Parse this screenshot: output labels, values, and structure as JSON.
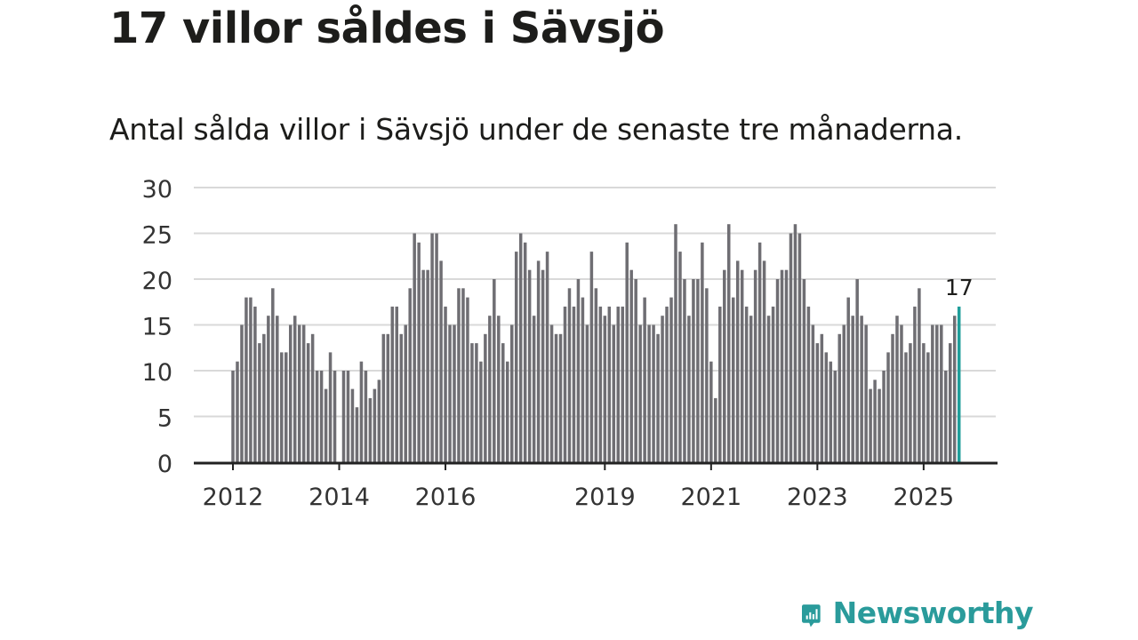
{
  "title": "17 villor såldes i Sävsjö",
  "subtitle": "Antal sålda villor i Sävsjö under de senaste tre månaderna.",
  "brand": {
    "name": "Newsworthy",
    "color": "#2a9b9b"
  },
  "chart_data": {
    "type": "bar",
    "x_start": "2012-01",
    "x_label_years": [
      "2012",
      "2014",
      "2016",
      "2019",
      "2021",
      "2023",
      "2025"
    ],
    "values": [
      10,
      11,
      15,
      18,
      18,
      17,
      13,
      14,
      16,
      19,
      16,
      12,
      12,
      15,
      16,
      15,
      15,
      13,
      14,
      10,
      10,
      8,
      12,
      10,
      0,
      10,
      10,
      8,
      6,
      11,
      10,
      7,
      8,
      9,
      14,
      14,
      17,
      17,
      14,
      15,
      19,
      25,
      24,
      21,
      21,
      25,
      25,
      22,
      17,
      15,
      15,
      19,
      19,
      18,
      13,
      13,
      11,
      14,
      16,
      20,
      16,
      13,
      11,
      15,
      23,
      25,
      24,
      21,
      16,
      22,
      21,
      23,
      15,
      14,
      14,
      17,
      19,
      17,
      20,
      18,
      15,
      23,
      19,
      17,
      16,
      17,
      15,
      17,
      17,
      24,
      21,
      20,
      15,
      18,
      15,
      15,
      14,
      16,
      17,
      18,
      26,
      23,
      20,
      16,
      20,
      20,
      24,
      19,
      11,
      7,
      17,
      21,
      26,
      18,
      22,
      21,
      17,
      16,
      21,
      24,
      22,
      16,
      17,
      20,
      21,
      21,
      25,
      26,
      25,
      20,
      17,
      15,
      13,
      14,
      12,
      11,
      10,
      14,
      15,
      18,
      16,
      20,
      16,
      15,
      8,
      9,
      8,
      10,
      12,
      14,
      16,
      15,
      12,
      13,
      17,
      19,
      13,
      12,
      15,
      15,
      15,
      10,
      13,
      16,
      17
    ],
    "ylim": [
      0,
      30
    ],
    "yticks": [
      0,
      5,
      10,
      15,
      20,
      25,
      30
    ],
    "highlight": {
      "value": 17,
      "label": "17"
    },
    "colors": {
      "bar": "#6f6e73",
      "highlight": "#1f9e9a",
      "grid": "#d9d9d9",
      "axis": "#222222"
    }
  }
}
